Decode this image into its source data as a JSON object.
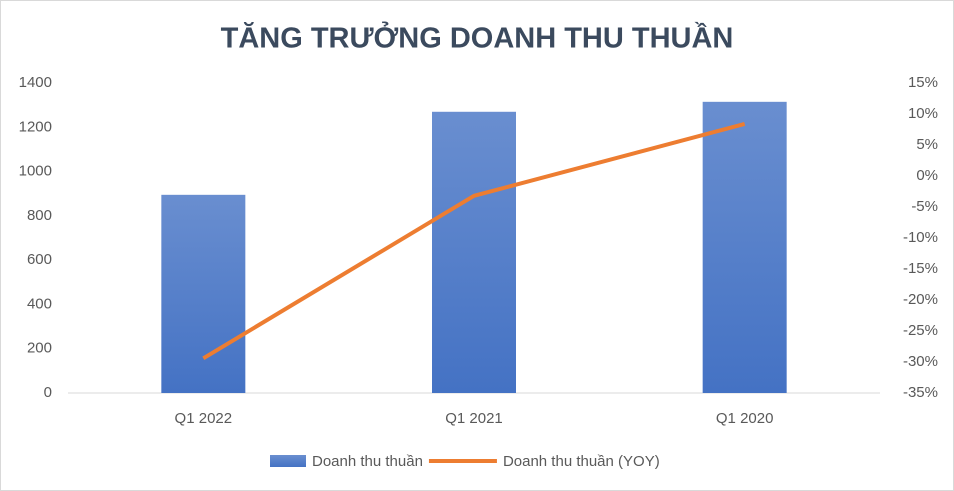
{
  "chart_data": {
    "type": "bar",
    "title": "TĂNG TRƯỞNG DOANH THU THUẦN",
    "categories": [
      "Q1 2022",
      "Q1 2021",
      "Q1 2020"
    ],
    "series": [
      {
        "name": "Doanh thu thuần",
        "type": "bar",
        "color": "#4472c4",
        "values": [
          895,
          1270,
          1315
        ]
      },
      {
        "name": "Doanh thu thuần (YOY)",
        "type": "line",
        "axis": "y2",
        "color": "#ed7d31",
        "values": [
          -29.4,
          -3.2,
          8.4
        ]
      }
    ],
    "ylim": [
      0,
      1400
    ],
    "yticks": [
      0,
      200,
      400,
      600,
      800,
      1000,
      1200,
      1400
    ],
    "y2lim": [
      -35,
      15
    ],
    "y2ticks": [
      {
        "value": -35,
        "label": "-35%"
      },
      {
        "value": -30,
        "label": "-30%"
      },
      {
        "value": -25,
        "label": "-25%"
      },
      {
        "value": -20,
        "label": "-20%"
      },
      {
        "value": -15,
        "label": "-15%"
      },
      {
        "value": -10,
        "label": "-10%"
      },
      {
        "value": -5,
        "label": "-5%"
      },
      {
        "value": 0,
        "label": "0%"
      },
      {
        "value": 5,
        "label": "5%"
      },
      {
        "value": 10,
        "label": "10%"
      },
      {
        "value": 15,
        "label": "15%"
      }
    ],
    "grid": false
  }
}
